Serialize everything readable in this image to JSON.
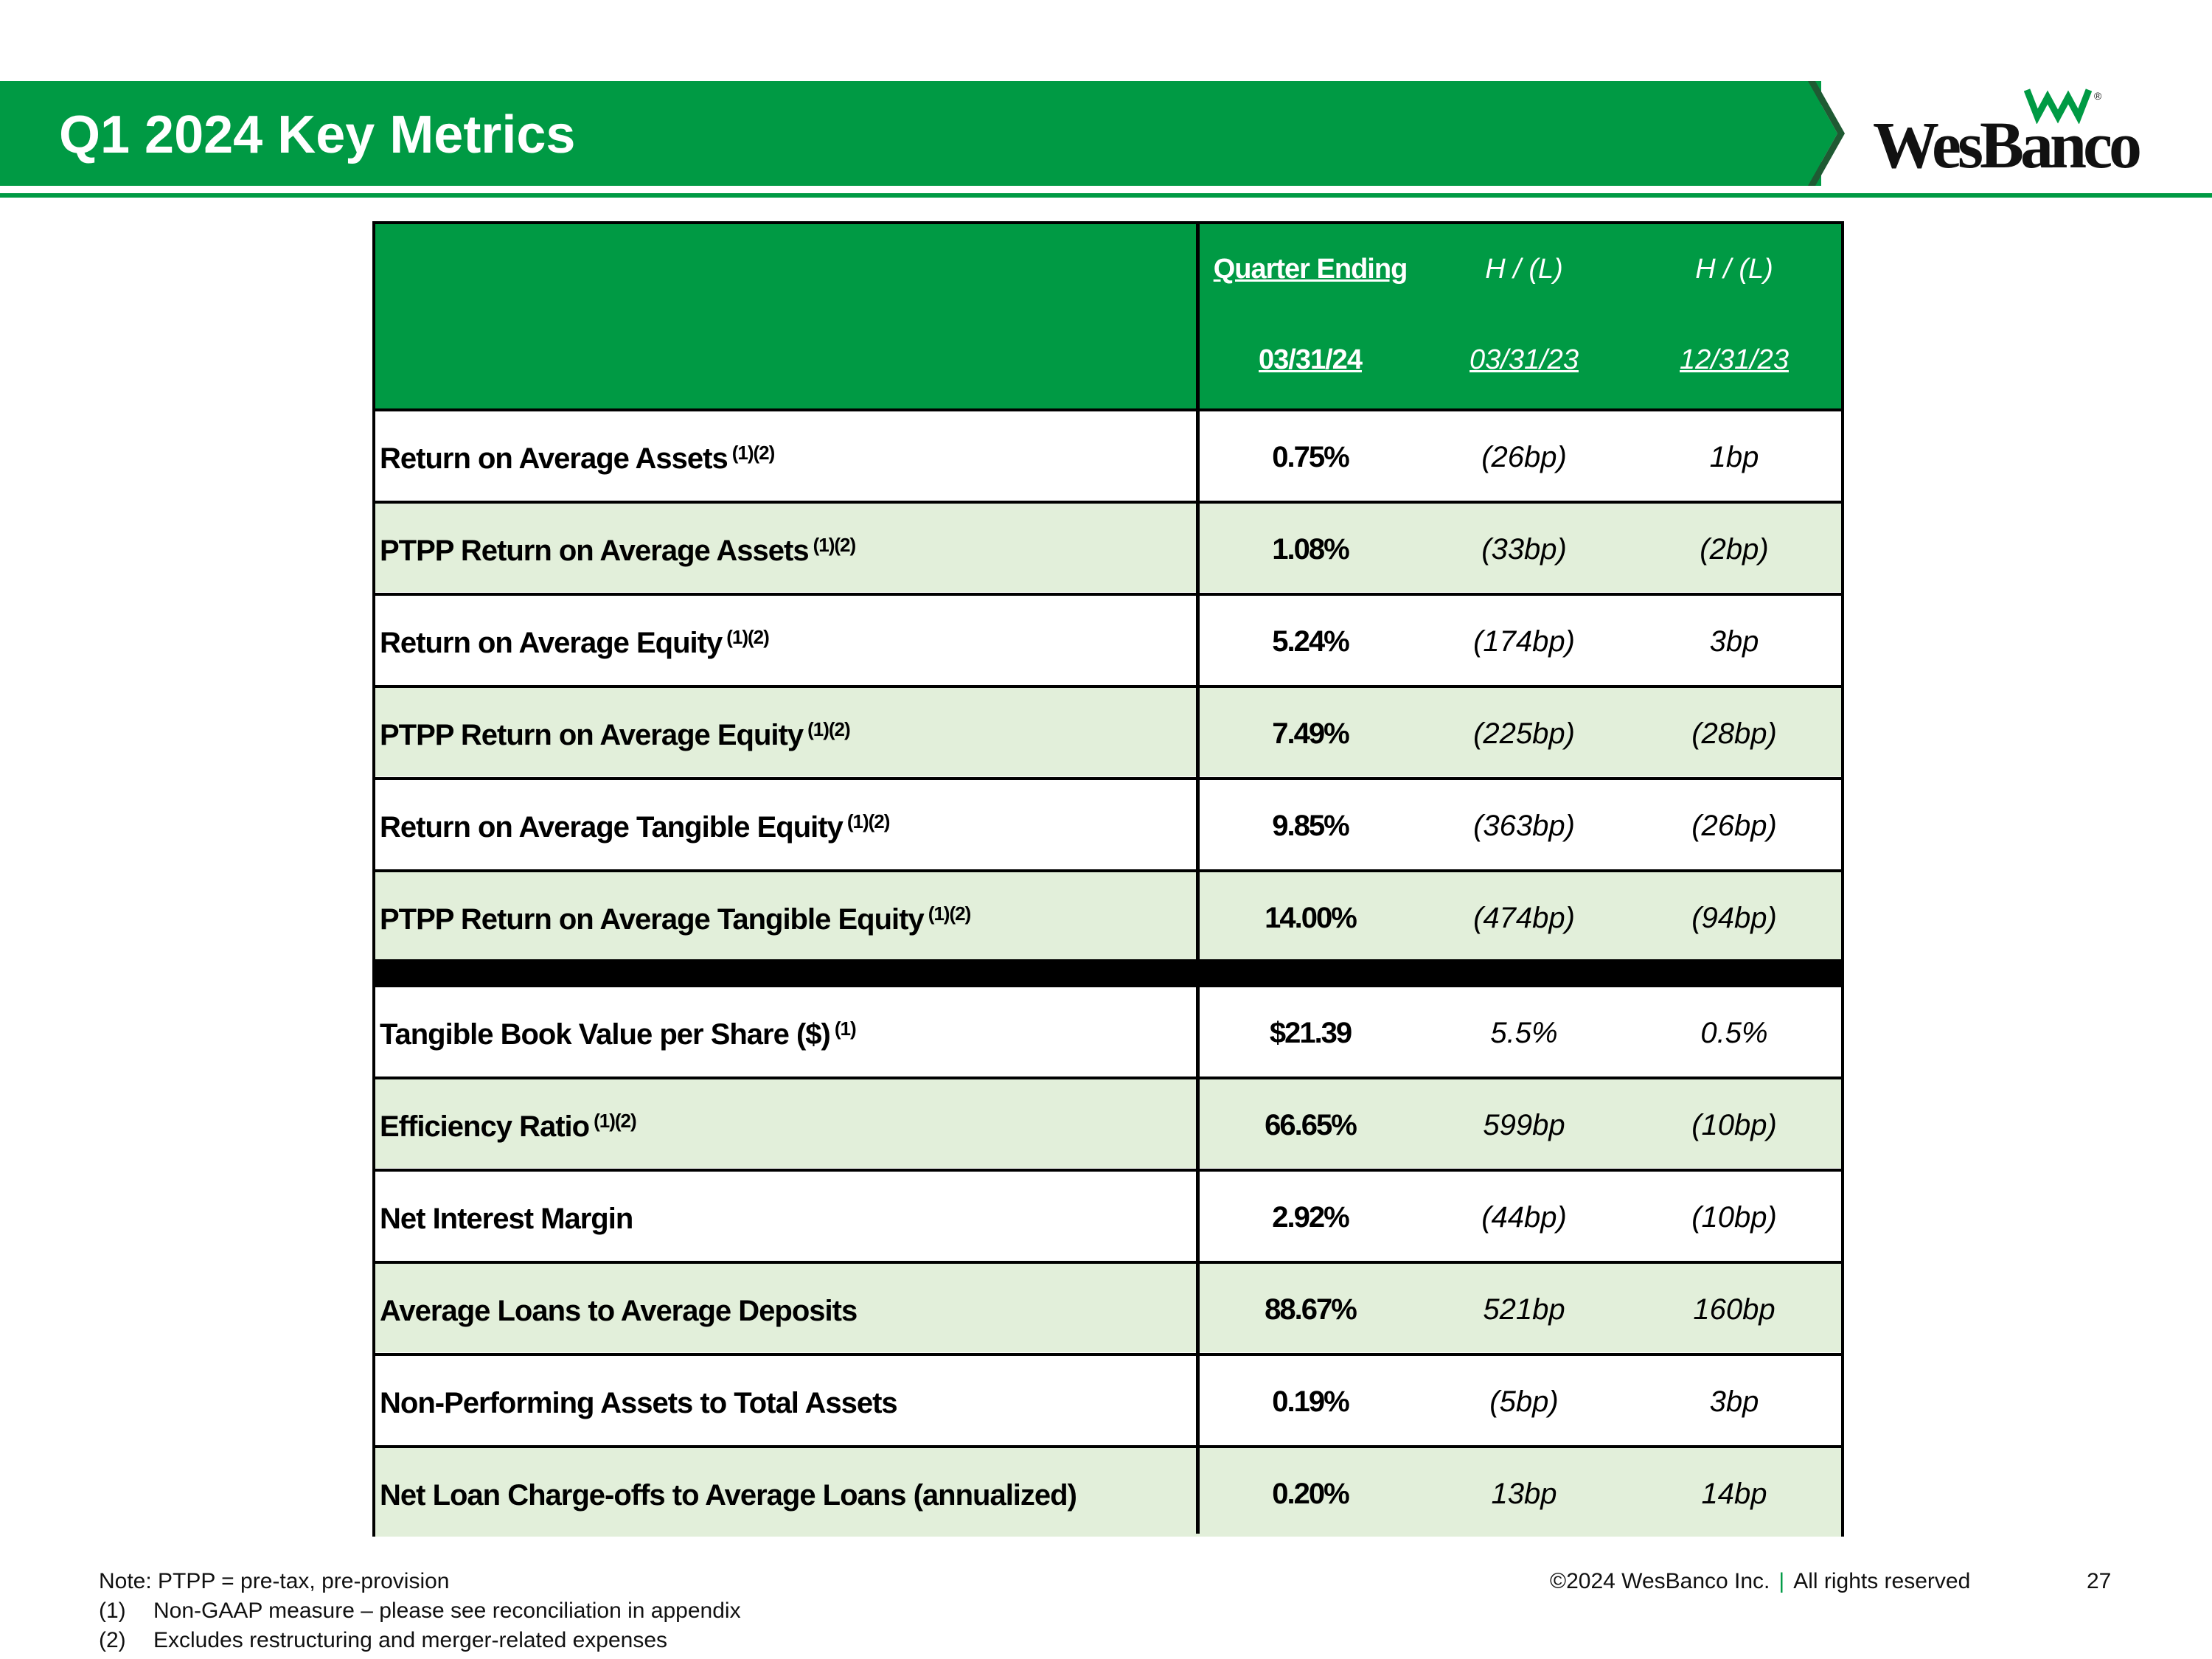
{
  "header": {
    "title": "Q1 2024 Key Metrics"
  },
  "logo": {
    "text": "WesBanco",
    "reg": "®"
  },
  "table": {
    "headers": {
      "col1_line1": "Quarter Ending",
      "col1_line2": "03/31/24",
      "col2_line1": "H / (L)",
      "col2_line2": "03/31/23",
      "col3_line1": "H / (L)",
      "col3_line2": "12/31/23"
    },
    "rows": [
      {
        "label": "Return on Average Assets",
        "sup": "(1)(2)",
        "value": "0.75%",
        "vs_prior_year": "(26bp)",
        "vs_prior_quarter": "1bp"
      },
      {
        "label": "PTPP Return on Average Assets",
        "sup": "(1)(2)",
        "value": "1.08%",
        "vs_prior_year": "(33bp)",
        "vs_prior_quarter": "(2bp)"
      },
      {
        "label": "Return on Average Equity",
        "sup": "(1)(2)",
        "value": "5.24%",
        "vs_prior_year": "(174bp)",
        "vs_prior_quarter": "3bp"
      },
      {
        "label": "PTPP Return on Average Equity",
        "sup": "(1)(2)",
        "value": "7.49%",
        "vs_prior_year": "(225bp)",
        "vs_prior_quarter": "(28bp)"
      },
      {
        "label": "Return on Average Tangible Equity",
        "sup": "(1)(2)",
        "value": "9.85%",
        "vs_prior_year": "(363bp)",
        "vs_prior_quarter": "(26bp)"
      },
      {
        "label": "PTPP Return on Average Tangible Equity",
        "sup": "(1)(2)",
        "value": "14.00%",
        "vs_prior_year": "(474bp)",
        "vs_prior_quarter": "(94bp)"
      },
      {
        "label": "Tangible Book Value per Share ($)",
        "sup": "(1)",
        "value": "$21.39",
        "vs_prior_year": "5.5%",
        "vs_prior_quarter": "0.5%"
      },
      {
        "label": "Efficiency Ratio",
        "sup": "(1)(2)",
        "value": "66.65%",
        "vs_prior_year": "599bp",
        "vs_prior_quarter": "(10bp)"
      },
      {
        "label": "Net Interest Margin",
        "sup": "",
        "value": "2.92%",
        "vs_prior_year": "(44bp)",
        "vs_prior_quarter": "(10bp)"
      },
      {
        "label": "Average Loans to Average Deposits",
        "sup": "",
        "value": "88.67%",
        "vs_prior_year": "521bp",
        "vs_prior_quarter": "160bp"
      },
      {
        "label": "Non-Performing Assets to Total Assets",
        "sup": "",
        "value": "0.19%",
        "vs_prior_year": "(5bp)",
        "vs_prior_quarter": "3bp"
      },
      {
        "label": "Net Loan Charge-offs to Average Loans (annualized)",
        "sup": "",
        "value": "0.20%",
        "vs_prior_year": "13bp",
        "vs_prior_quarter": "14bp"
      }
    ]
  },
  "footer": {
    "note": "Note:  PTPP = pre-tax, pre-provision",
    "fn1_num": "(1)",
    "fn1_text": "Non-GAAP measure – please see reconciliation in appendix",
    "fn2_num": "(2)",
    "fn2_text": "Excludes restructuring and merger-related expenses",
    "copyright": "©2024 WesBanco Inc.",
    "separator": "|",
    "rights": "All rights reserved",
    "page_number": "27"
  },
  "colors": {
    "brand_green": "#009a44",
    "row_tint": "#e2efda"
  }
}
